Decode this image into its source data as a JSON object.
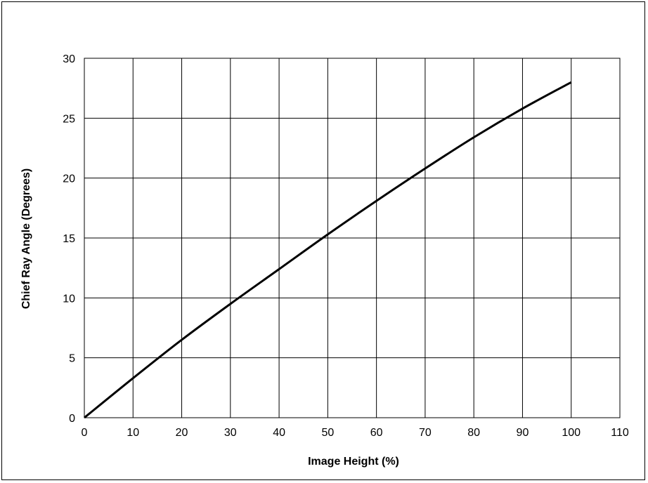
{
  "chart_data": {
    "type": "line",
    "title": "",
    "xlabel": "Image Height (%)",
    "ylabel": "Chief Ray Angle (Degrees)",
    "xlim": [
      0,
      110
    ],
    "ylim": [
      0,
      30
    ],
    "x_ticks": [
      0,
      10,
      20,
      30,
      40,
      50,
      60,
      70,
      80,
      90,
      100,
      110
    ],
    "y_ticks": [
      0,
      5,
      10,
      15,
      20,
      25,
      30
    ],
    "grid": true,
    "legend": "none",
    "line_color": "#000000",
    "series": [
      {
        "x": [
          0,
          10,
          20,
          30,
          40,
          50,
          60,
          70,
          80,
          90,
          100
        ],
        "y": [
          0,
          3.3,
          6.5,
          9.5,
          12.4,
          15.3,
          18.1,
          20.8,
          23.4,
          25.8,
          28.0
        ]
      }
    ]
  }
}
